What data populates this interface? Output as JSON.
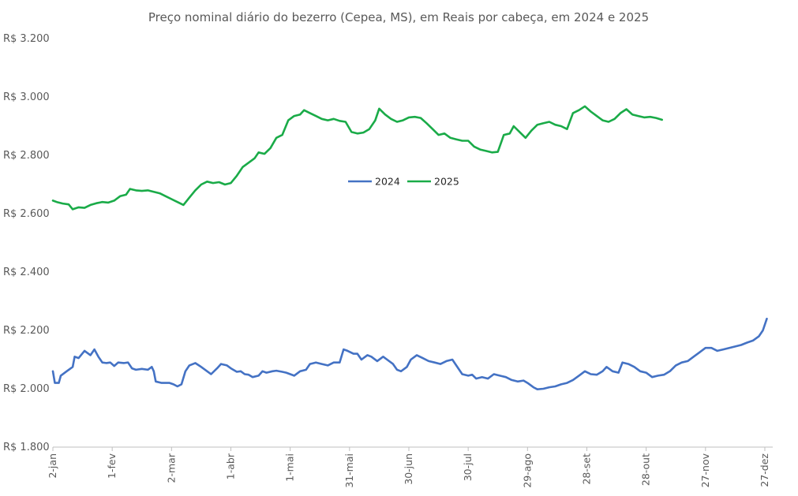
{
  "chart_data": {
    "type": "line",
    "title": "Preço nominal diário do bezerro (Cepea, MS), em Reais por cabeça, em 2024 e 2025",
    "xlabel": "",
    "ylabel": "",
    "ylim": [
      1800,
      3200
    ],
    "y_ticks": [
      1800,
      2000,
      2200,
      2400,
      2600,
      2800,
      3000,
      3200
    ],
    "y_tick_labels": [
      "R$ 1.800",
      "R$ 2.000",
      "R$ 2.200",
      "R$ 2.400",
      "R$ 2.600",
      "R$ 2.800",
      "R$ 3.000",
      "R$ 3.200"
    ],
    "x_domain": [
      "2-jan",
      "31-dez"
    ],
    "x_ticks": [
      "2-jan",
      "1-fev",
      "2-mar",
      "1-abr",
      "1-mai",
      "31-mai",
      "30-jun",
      "30-jul",
      "29-ago",
      "28-set",
      "28-out",
      "27-nov",
      "27-dez"
    ],
    "grid": false,
    "legend_position": "center",
    "series": [
      {
        "name": "2024",
        "color": "#4472C4",
        "points": [
          [
            "2-jan",
            2060
          ],
          [
            "3-jan",
            2020
          ],
          [
            "5-jan",
            2020
          ],
          [
            "6-jan",
            2045
          ],
          [
            "9-jan",
            2060
          ],
          [
            "12-jan",
            2075
          ],
          [
            "13-jan",
            2110
          ],
          [
            "15-jan",
            2105
          ],
          [
            "18-jan",
            2130
          ],
          [
            "21-jan",
            2115
          ],
          [
            "23-jan",
            2135
          ],
          [
            "25-jan",
            2110
          ],
          [
            "27-jan",
            2090
          ],
          [
            "29-jan",
            2088
          ],
          [
            "31-jan",
            2090
          ],
          [
            "2-fev",
            2078
          ],
          [
            "4-fev",
            2090
          ],
          [
            "7-fev",
            2088
          ],
          [
            "9-fev",
            2090
          ],
          [
            "11-fev",
            2070
          ],
          [
            "13-fev",
            2065
          ],
          [
            "16-fev",
            2068
          ],
          [
            "19-fev",
            2065
          ],
          [
            "21-fev",
            2075
          ],
          [
            "22-fev",
            2060
          ],
          [
            "23-fev",
            2025
          ],
          [
            "26-fev",
            2020
          ],
          [
            "1-mar",
            2020
          ],
          [
            "3-mar",
            2015
          ],
          [
            "5-mar",
            2008
          ],
          [
            "7-mar",
            2015
          ],
          [
            "9-mar",
            2060
          ],
          [
            "11-mar",
            2080
          ],
          [
            "14-mar",
            2088
          ],
          [
            "17-mar",
            2075
          ],
          [
            "20-mar",
            2060
          ],
          [
            "22-mar",
            2050
          ],
          [
            "25-mar",
            2070
          ],
          [
            "27-mar",
            2085
          ],
          [
            "30-mar",
            2080
          ],
          [
            "1-abr",
            2070
          ],
          [
            "4-abr",
            2058
          ],
          [
            "6-abr",
            2060
          ],
          [
            "8-abr",
            2050
          ],
          [
            "10-abr",
            2048
          ],
          [
            "12-abr",
            2040
          ],
          [
            "15-abr",
            2045
          ],
          [
            "17-abr",
            2060
          ],
          [
            "19-abr",
            2055
          ],
          [
            "22-abr",
            2060
          ],
          [
            "24-abr",
            2062
          ],
          [
            "27-abr",
            2058
          ],
          [
            "29-abr",
            2055
          ],
          [
            "1-mai",
            2050
          ],
          [
            "3-mai",
            2045
          ],
          [
            "6-mai",
            2060
          ],
          [
            "9-mai",
            2065
          ],
          [
            "11-mai",
            2085
          ],
          [
            "14-mai",
            2090
          ],
          [
            "17-mai",
            2085
          ],
          [
            "20-mai",
            2080
          ],
          [
            "23-mai",
            2090
          ],
          [
            "26-mai",
            2090
          ],
          [
            "28-mai",
            2135
          ],
          [
            "30-mai",
            2130
          ],
          [
            "2-jun",
            2120
          ],
          [
            "4-jun",
            2120
          ],
          [
            "6-jun",
            2100
          ],
          [
            "9-jun",
            2115
          ],
          [
            "11-jun",
            2110
          ],
          [
            "14-jun",
            2095
          ],
          [
            "17-jun",
            2110
          ],
          [
            "19-jun",
            2100
          ],
          [
            "22-jun",
            2085
          ],
          [
            "24-jun",
            2065
          ],
          [
            "26-jun",
            2060
          ],
          [
            "29-jun",
            2075
          ],
          [
            "1-jul",
            2100
          ],
          [
            "4-jul",
            2115
          ],
          [
            "7-jul",
            2105
          ],
          [
            "10-jul",
            2095
          ],
          [
            "13-jul",
            2090
          ],
          [
            "16-jul",
            2085
          ],
          [
            "19-jul",
            2095
          ],
          [
            "22-jul",
            2100
          ],
          [
            "25-jul",
            2070
          ],
          [
            "27-jul",
            2050
          ],
          [
            "30-jul",
            2045
          ],
          [
            "1-ago",
            2048
          ],
          [
            "3-ago",
            2035
          ],
          [
            "6-ago",
            2040
          ],
          [
            "9-ago",
            2035
          ],
          [
            "12-ago",
            2050
          ],
          [
            "15-ago",
            2045
          ],
          [
            "18-ago",
            2040
          ],
          [
            "21-ago",
            2030
          ],
          [
            "24-ago",
            2025
          ],
          [
            "27-ago",
            2028
          ],
          [
            "29-ago",
            2020
          ],
          [
            "1-set",
            2005
          ],
          [
            "3-set",
            1998
          ],
          [
            "6-set",
            2000
          ],
          [
            "9-set",
            2005
          ],
          [
            "12-set",
            2008
          ],
          [
            "15-set",
            2015
          ],
          [
            "18-set",
            2020
          ],
          [
            "21-set",
            2030
          ],
          [
            "24-set",
            2045
          ],
          [
            "27-set",
            2060
          ],
          [
            "30-set",
            2050
          ],
          [
            "3-out",
            2048
          ],
          [
            "6-out",
            2060
          ],
          [
            "8-out",
            2075
          ],
          [
            "11-out",
            2060
          ],
          [
            "14-out",
            2055
          ],
          [
            "16-out",
            2090
          ],
          [
            "19-out",
            2085
          ],
          [
            "22-out",
            2075
          ],
          [
            "25-out",
            2060
          ],
          [
            "28-out",
            2055
          ],
          [
            "31-out",
            2040
          ],
          [
            "3-nov",
            2045
          ],
          [
            "6-nov",
            2048
          ],
          [
            "9-nov",
            2060
          ],
          [
            "12-nov",
            2080
          ],
          [
            "15-nov",
            2090
          ],
          [
            "18-nov",
            2095
          ],
          [
            "21-nov",
            2110
          ],
          [
            "24-nov",
            2125
          ],
          [
            "27-nov",
            2140
          ],
          [
            "30-nov",
            2140
          ],
          [
            "3-dez",
            2130
          ],
          [
            "6-dez",
            2135
          ],
          [
            "9-dez",
            2140
          ],
          [
            "12-dez",
            2145
          ],
          [
            "15-dez",
            2150
          ],
          [
            "18-dez",
            2158
          ],
          [
            "21-dez",
            2165
          ],
          [
            "24-dez",
            2180
          ],
          [
            "26-dez",
            2200
          ],
          [
            "28-dez",
            2240
          ]
        ]
      },
      {
        "name": "2025",
        "color": "#1AAB48",
        "points": [
          [
            "2-jan",
            2645
          ],
          [
            "4-jan",
            2640
          ],
          [
            "7-jan",
            2635
          ],
          [
            "10-jan",
            2632
          ],
          [
            "12-jan",
            2615
          ],
          [
            "15-jan",
            2622
          ],
          [
            "18-jan",
            2620
          ],
          [
            "21-jan",
            2630
          ],
          [
            "24-jan",
            2636
          ],
          [
            "27-jan",
            2640
          ],
          [
            "30-jan",
            2638
          ],
          [
            "2-fev",
            2645
          ],
          [
            "5-fev",
            2660
          ],
          [
            "8-fev",
            2665
          ],
          [
            "10-fev",
            2685
          ],
          [
            "13-fev",
            2680
          ],
          [
            "16-fev",
            2678
          ],
          [
            "19-fev",
            2680
          ],
          [
            "22-fev",
            2675
          ],
          [
            "25-fev",
            2670
          ],
          [
            "28-fev",
            2660
          ],
          [
            "2-mar",
            2650
          ],
          [
            "5-mar",
            2640
          ],
          [
            "8-mar",
            2630
          ],
          [
            "11-mar",
            2655
          ],
          [
            "14-mar",
            2680
          ],
          [
            "17-mar",
            2700
          ],
          [
            "20-mar",
            2710
          ],
          [
            "23-mar",
            2705
          ],
          [
            "26-mar",
            2708
          ],
          [
            "29-mar",
            2700
          ],
          [
            "1-abr",
            2705
          ],
          [
            "4-abr",
            2730
          ],
          [
            "7-abr",
            2760
          ],
          [
            "10-abr",
            2775
          ],
          [
            "13-abr",
            2790
          ],
          [
            "15-abr",
            2810
          ],
          [
            "18-abr",
            2805
          ],
          [
            "21-abr",
            2825
          ],
          [
            "24-abr",
            2860
          ],
          [
            "27-abr",
            2870
          ],
          [
            "30-abr",
            2920
          ],
          [
            "3-mai",
            2935
          ],
          [
            "6-mai",
            2940
          ],
          [
            "8-mai",
            2955
          ],
          [
            "11-mai",
            2945
          ],
          [
            "14-mai",
            2935
          ],
          [
            "17-mai",
            2925
          ],
          [
            "20-mai",
            2920
          ],
          [
            "23-mai",
            2925
          ],
          [
            "26-mai",
            2918
          ],
          [
            "29-mai",
            2915
          ],
          [
            "1-jun",
            2880
          ],
          [
            "4-jun",
            2875
          ],
          [
            "7-jun",
            2878
          ],
          [
            "10-jun",
            2890
          ],
          [
            "13-jun",
            2920
          ],
          [
            "15-jun",
            2960
          ],
          [
            "18-jun",
            2940
          ],
          [
            "21-jun",
            2925
          ],
          [
            "24-jun",
            2915
          ],
          [
            "27-jun",
            2920
          ],
          [
            "30-jun",
            2930
          ],
          [
            "3-jul",
            2932
          ],
          [
            "6-jul",
            2928
          ],
          [
            "9-jul",
            2910
          ],
          [
            "12-jul",
            2890
          ],
          [
            "15-jul",
            2870
          ],
          [
            "18-jul",
            2875
          ],
          [
            "21-jul",
            2860
          ],
          [
            "24-jul",
            2855
          ],
          [
            "27-jul",
            2850
          ],
          [
            "30-jul",
            2850
          ],
          [
            "2-ago",
            2830
          ],
          [
            "5-ago",
            2820
          ],
          [
            "8-ago",
            2815
          ],
          [
            "11-ago",
            2810
          ],
          [
            "14-ago",
            2812
          ],
          [
            "17-ago",
            2870
          ],
          [
            "20-ago",
            2875
          ],
          [
            "22-ago",
            2900
          ],
          [
            "25-ago",
            2880
          ],
          [
            "28-ago",
            2860
          ],
          [
            "31-ago",
            2885
          ],
          [
            "3-set",
            2905
          ],
          [
            "6-set",
            2910
          ],
          [
            "9-set",
            2915
          ],
          [
            "12-set",
            2905
          ],
          [
            "15-set",
            2900
          ],
          [
            "18-set",
            2890
          ],
          [
            "21-set",
            2945
          ],
          [
            "24-set",
            2955
          ],
          [
            "27-set",
            2968
          ],
          [
            "30-set",
            2950
          ],
          [
            "3-out",
            2935
          ],
          [
            "6-out",
            2920
          ],
          [
            "9-out",
            2915
          ],
          [
            "12-out",
            2925
          ],
          [
            "15-out",
            2945
          ],
          [
            "18-out",
            2958
          ],
          [
            "21-out",
            2940
          ],
          [
            "24-out",
            2935
          ],
          [
            "27-out",
            2930
          ],
          [
            "30-out",
            2932
          ],
          [
            "2-nov",
            2928
          ],
          [
            "5-nov",
            2922
          ]
        ]
      }
    ]
  }
}
